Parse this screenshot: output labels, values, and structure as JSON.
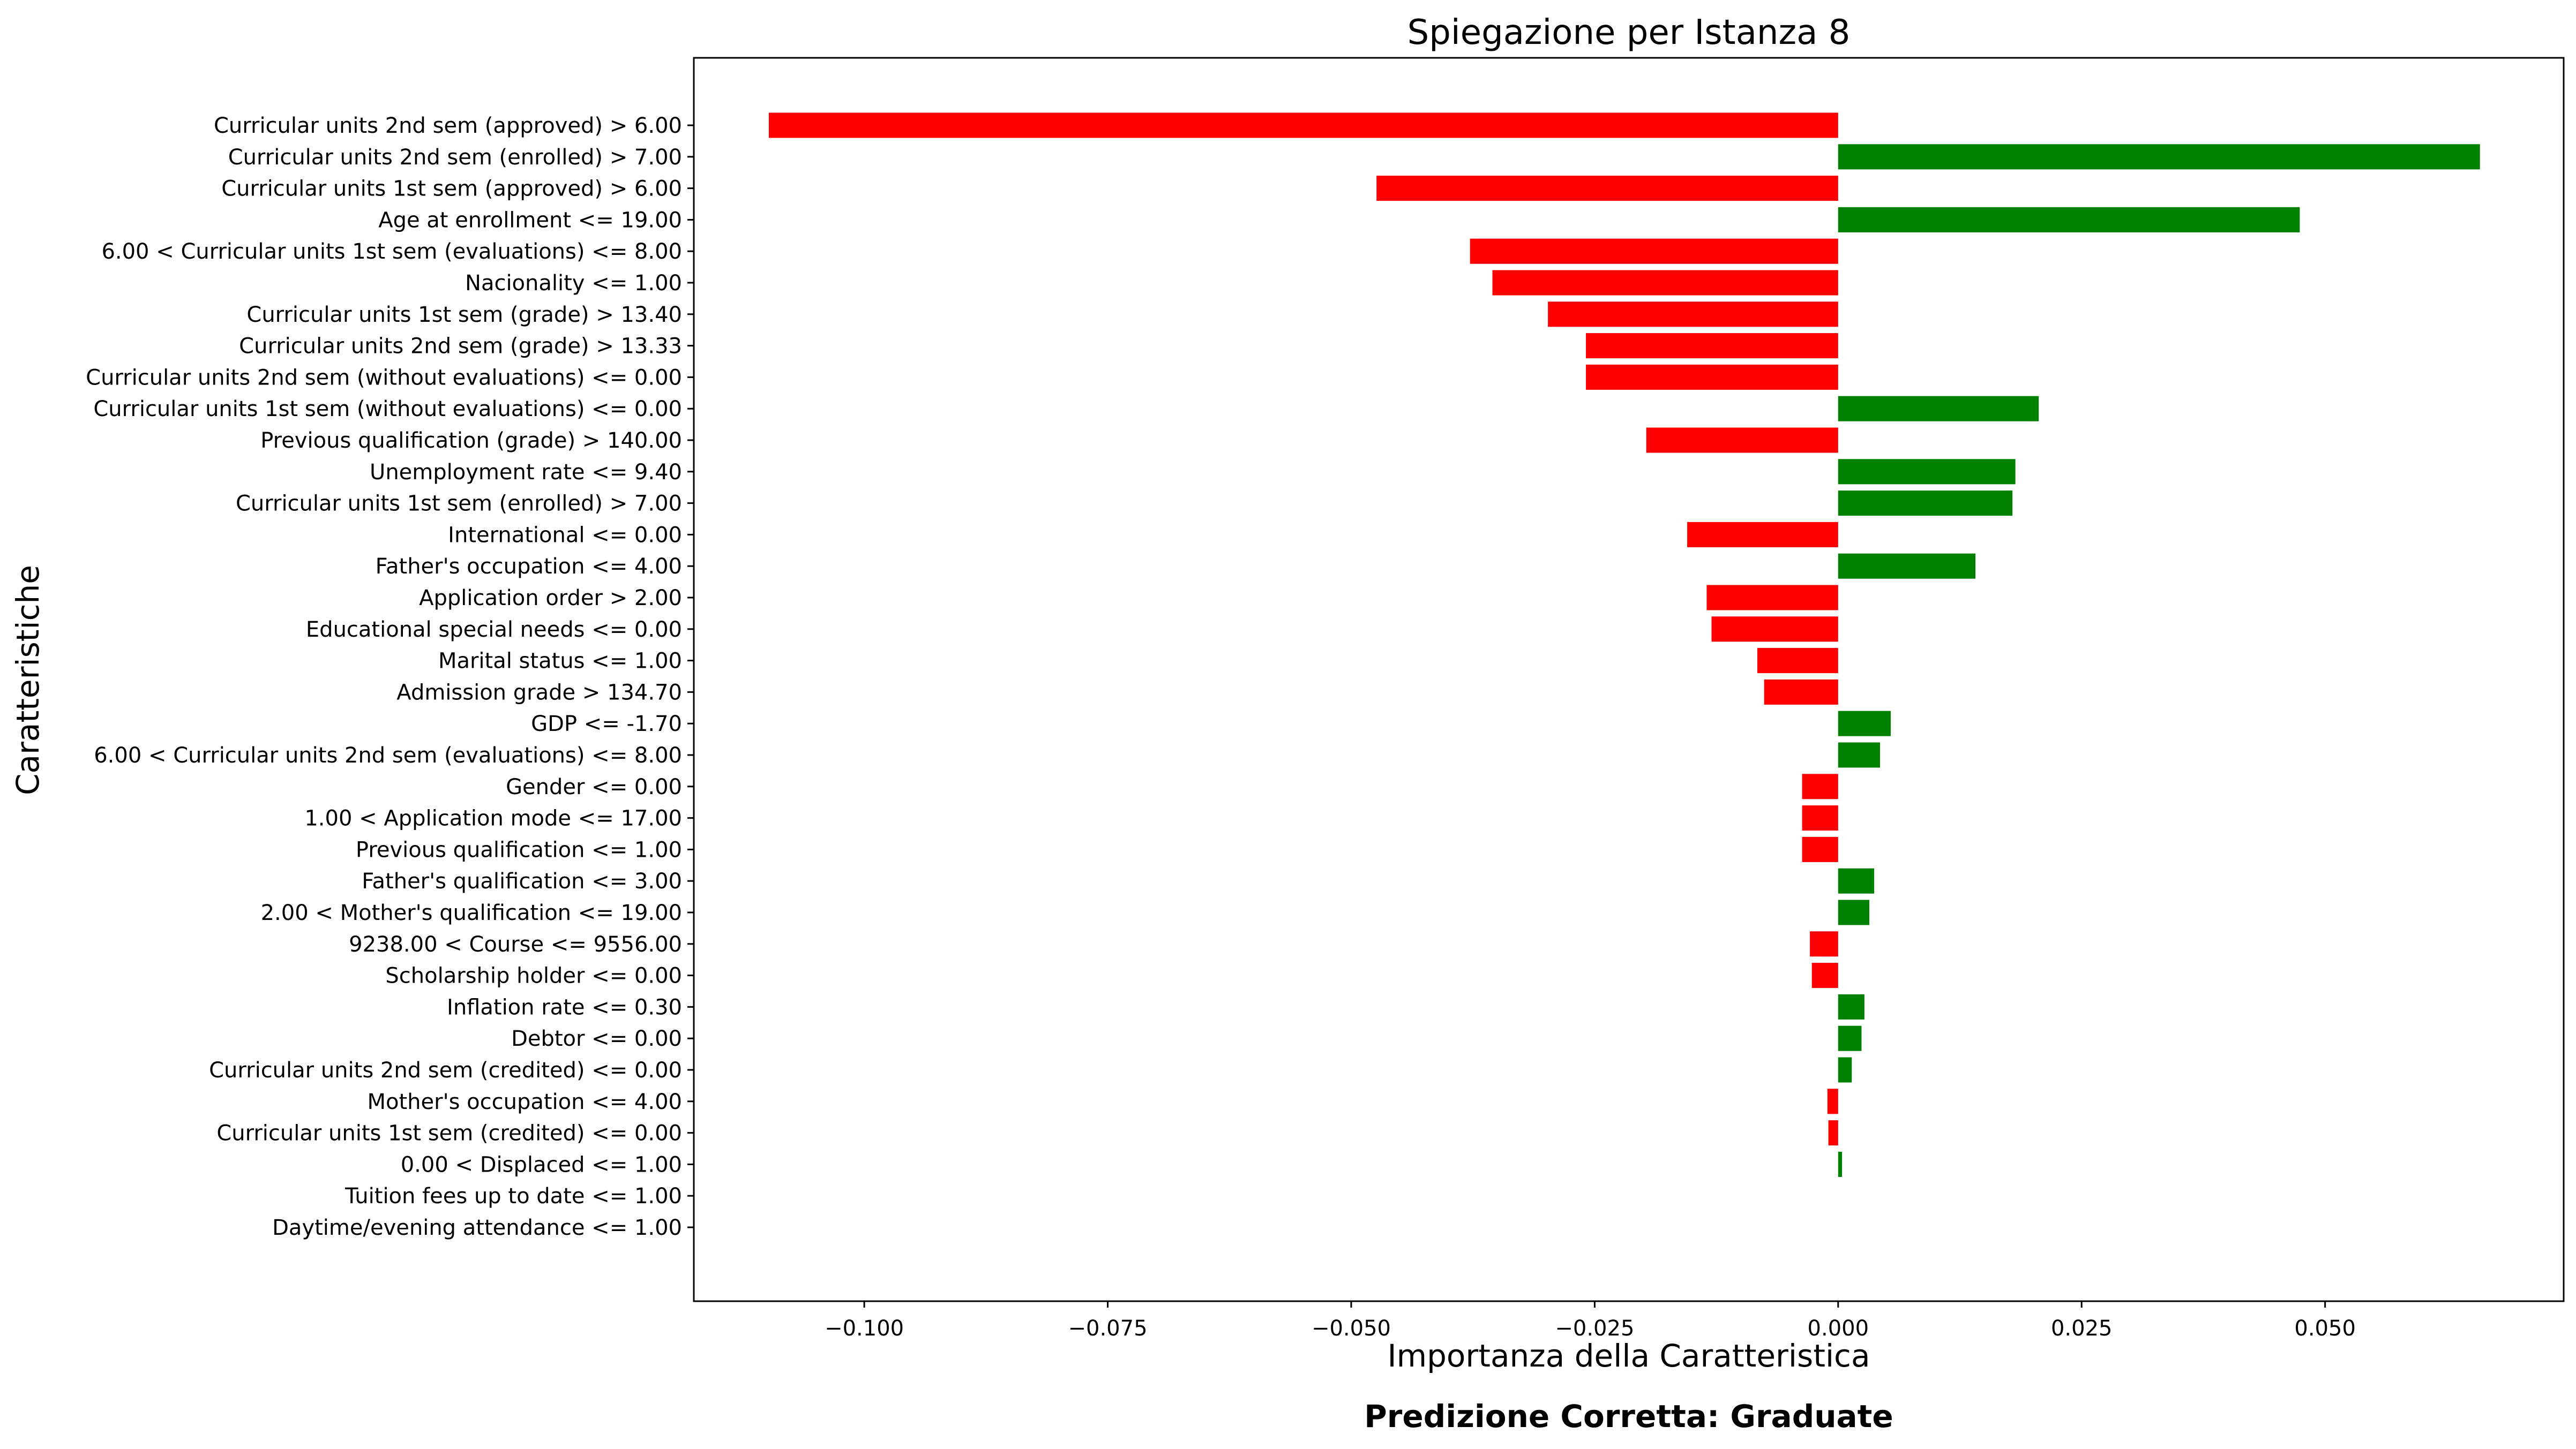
{
  "chart_data": {
    "type": "bar",
    "orientation": "horizontal",
    "title": "Spiegazione per Istanza 8",
    "xlabel": "Importanza della Caratteristica",
    "ylabel": "Caratteristiche",
    "footer": "Predizione Corretta: Graduate",
    "xlim": [
      -0.1175,
      0.0745
    ],
    "xticks": [
      -0.1,
      -0.075,
      -0.05,
      -0.025,
      0.0,
      0.025,
      0.05
    ],
    "xtick_labels": [
      "−0.100",
      "−0.075",
      "−0.050",
      "−0.025",
      "0.000",
      "0.025",
      "0.050"
    ],
    "grid": false,
    "legend": "none",
    "colors": {
      "positive": "#008000",
      "negative": "#ff0000",
      "footer": "#ff0000"
    },
    "categories": [
      "Curricular units 2nd sem (approved) > 6.00",
      "Curricular units 2nd sem (enrolled) > 7.00",
      "Curricular units 1st sem (approved) > 6.00",
      "Age at enrollment <= 19.00",
      "6.00 < Curricular units 1st sem (evaluations) <= 8.00",
      "Nacionality <= 1.00",
      "Curricular units 1st sem (grade) > 13.40",
      "Curricular units 2nd sem (grade) > 13.33",
      "Curricular units 2nd sem (without evaluations) <= 0.00",
      "Curricular units 1st sem (without evaluations) <= 0.00",
      "Previous qualification (grade) > 140.00",
      "Unemployment rate <= 9.40",
      "Curricular units 1st sem (enrolled) > 7.00",
      "International <= 0.00",
      "Father's occupation <= 4.00",
      "Application order > 2.00",
      "Educational special needs <= 0.00",
      "Marital status <= 1.00",
      "Admission grade > 134.70",
      "GDP <= -1.70",
      "6.00 < Curricular units 2nd sem (evaluations) <= 8.00",
      "Gender <= 0.00",
      "1.00 < Application mode <= 17.00",
      "Previous qualification <= 1.00",
      "Father's qualification <= 3.00",
      "2.00 < Mother's qualification <= 19.00",
      "9238.00 < Course <= 9556.00",
      "Scholarship holder <= 0.00",
      "Inflation rate <= 0.30",
      "Debtor <= 0.00",
      "Curricular units 2nd sem (credited) <= 0.00",
      "Mother's occupation <= 4.00",
      "Curricular units 1st sem (credited) <= 0.00",
      "0.00 < Displaced <= 1.00",
      "Tuition fees up to date <= 1.00",
      "Daytime/evening attendance\t <= 1.00"
    ],
    "values": [
      -0.1098,
      0.0659,
      -0.0474,
      0.0474,
      -0.0378,
      -0.0355,
      -0.0298,
      -0.0259,
      -0.0259,
      0.0206,
      -0.0197,
      0.0182,
      0.0179,
      -0.0155,
      0.0141,
      -0.0135,
      -0.013,
      -0.0083,
      -0.0076,
      0.0054,
      0.0043,
      -0.0037,
      -0.0037,
      -0.0037,
      0.0037,
      0.0032,
      -0.0029,
      -0.0027,
      0.0027,
      0.0024,
      0.0014,
      -0.0011,
      -0.001,
      0.0004,
      0.0,
      0.0
    ]
  }
}
